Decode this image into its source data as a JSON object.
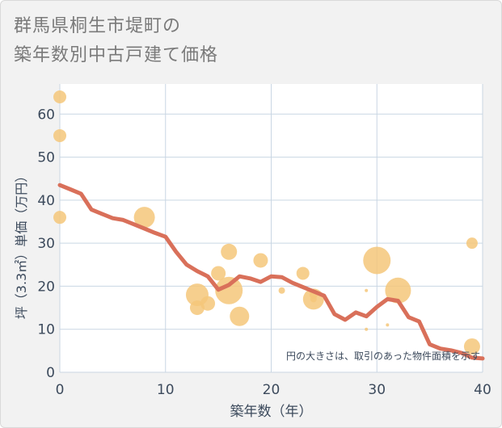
{
  "title_line1": "群馬県桐生市堤町の",
  "title_line2": "築年数別中古戸建て価格",
  "chart_data": {
    "type": "scatter",
    "xlabel": "築年数（年）",
    "ylabel": "坪（3.3㎡）単価（万円）",
    "xlim": [
      0,
      40
    ],
    "ylim": [
      0,
      67
    ],
    "xticks": [
      0,
      10,
      20,
      30,
      40
    ],
    "yticks": [
      0,
      10,
      20,
      30,
      40,
      50,
      60
    ],
    "grid": true,
    "annotation": "円の大きさは、取引のあった物件面積を示す",
    "colors": {
      "bubble": "#f5c77a",
      "line": "#d9705a",
      "plot_bg": "#ffffff",
      "grid": "#c9d6e3"
    },
    "scatter_points": [
      {
        "x": 0,
        "y": 64,
        "size": 8
      },
      {
        "x": 0,
        "y": 55,
        "size": 8
      },
      {
        "x": 0,
        "y": 36,
        "size": 8
      },
      {
        "x": 8,
        "y": 36,
        "size": 13
      },
      {
        "x": 13,
        "y": 18,
        "size": 14
      },
      {
        "x": 13,
        "y": 15,
        "size": 9
      },
      {
        "x": 14,
        "y": 16,
        "size": 9
      },
      {
        "x": 15,
        "y": 23,
        "size": 9
      },
      {
        "x": 16,
        "y": 28,
        "size": 10
      },
      {
        "x": 16,
        "y": 19,
        "size": 17
      },
      {
        "x": 17,
        "y": 13,
        "size": 12
      },
      {
        "x": 19,
        "y": 26,
        "size": 9
      },
      {
        "x": 21,
        "y": 19,
        "size": 4
      },
      {
        "x": 23,
        "y": 23,
        "size": 8
      },
      {
        "x": 24,
        "y": 17,
        "size": 13
      },
      {
        "x": 24,
        "y": 18,
        "size": 5
      },
      {
        "x": 24,
        "y": 17,
        "size": 4
      },
      {
        "x": 29,
        "y": 19,
        "size": 2
      },
      {
        "x": 29,
        "y": 10,
        "size": 2
      },
      {
        "x": 30,
        "y": 26,
        "size": 17
      },
      {
        "x": 31,
        "y": 11,
        "size": 2
      },
      {
        "x": 32,
        "y": 19,
        "size": 16
      },
      {
        "x": 39,
        "y": 30,
        "size": 7
      },
      {
        "x": 39,
        "y": 6,
        "size": 10
      }
    ],
    "trend_line": {
      "x": [
        0,
        1,
        2,
        3,
        4,
        5,
        6,
        7,
        8,
        9,
        10,
        11,
        12,
        13,
        14,
        15,
        16,
        17,
        18,
        19,
        20,
        21,
        22,
        23,
        24,
        25,
        26,
        27,
        28,
        29,
        30,
        31,
        32,
        33,
        34,
        35,
        36,
        37,
        38,
        39,
        40
      ],
      "y": [
        43.5,
        42.5,
        41.5,
        37.8,
        36.8,
        35.8,
        35.4,
        34.4,
        33.4,
        32.4,
        31.5,
        28,
        25,
        23.5,
        22.3,
        19.2,
        20.3,
        22.3,
        21.8,
        21,
        22.3,
        22.1,
        20.8,
        19.8,
        18.8,
        17.8,
        13.5,
        12.2,
        13.9,
        13,
        15.2,
        17,
        16.6,
        12.8,
        11.8,
        6.5,
        5.5,
        5.1,
        4.5,
        3.4,
        3.2
      ]
    }
  }
}
